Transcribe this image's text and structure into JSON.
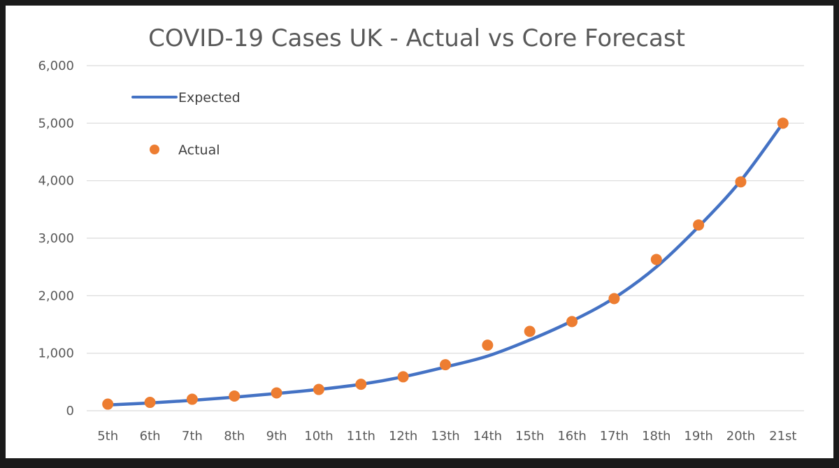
{
  "chart_data": {
    "type": "line",
    "title": "COVID-19 Cases UK - Actual vs Core Forecast",
    "xlabel": "",
    "ylabel": "",
    "categories": [
      "5th",
      "6th",
      "7th",
      "8th",
      "9th",
      "10th",
      "11th",
      "12th",
      "13th",
      "14th",
      "15th",
      "16th",
      "17th",
      "18th",
      "19th",
      "20th",
      "21st"
    ],
    "ylim": [
      0,
      6000
    ],
    "yticks": [
      "0",
      "1,000",
      "2,000",
      "3,000",
      "4,000",
      "5,000",
      "6,000"
    ],
    "grid": true,
    "legend_position": "top-left",
    "series": [
      {
        "name": "Expected",
        "style": "line",
        "color": "#4472c4",
        "values": [
          100,
          135,
          180,
          235,
          300,
          370,
          460,
          590,
          760,
          950,
          1230,
          1560,
          1960,
          2500,
          3200,
          4000,
          5000
        ]
      },
      {
        "name": "Actual",
        "style": "markers",
        "color": "#ed7d31",
        "values": [
          115,
          145,
          200,
          255,
          310,
          370,
          460,
          590,
          800,
          1140,
          1380,
          1550,
          1950,
          2630,
          3230,
          3980,
          5000
        ]
      }
    ]
  }
}
